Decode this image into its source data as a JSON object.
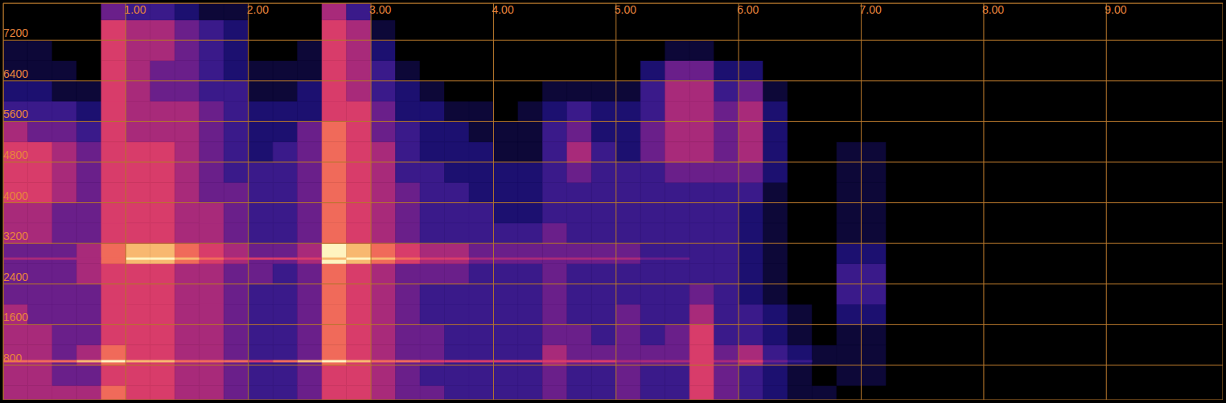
{
  "chart_data": {
    "type": "heatmap",
    "xlim": [
      0,
      9.95
    ],
    "xticks": [
      {
        "value": 1,
        "label": "1.00"
      },
      {
        "value": 2,
        "label": "2.00"
      },
      {
        "value": 3,
        "label": "3.00"
      },
      {
        "value": 4,
        "label": "4.00"
      },
      {
        "value": 5,
        "label": "5.00"
      },
      {
        "value": 6,
        "label": "6.00"
      },
      {
        "value": 7,
        "label": "7.00"
      },
      {
        "value": 8,
        "label": "8.00"
      },
      {
        "value": 9,
        "label": "9.00"
      }
    ],
    "ylim": [
      120,
      7930
    ],
    "yticks": [
      800,
      1600,
      2400,
      3200,
      4000,
      4800,
      5600,
      6400,
      7200
    ],
    "grid": true,
    "color_range": [
      0,
      9
    ],
    "x_bins": [
      0,
      0.2,
      0.4,
      0.6,
      0.8,
      1,
      1.2,
      1.4,
      1.6,
      1.8,
      2,
      2.2,
      2.4,
      2.6,
      2.8,
      3,
      3.2,
      3.4,
      3.6,
      3.8,
      4,
      4.2,
      4.4,
      4.6,
      4.8,
      5,
      5.2,
      5.4,
      5.6,
      5.8,
      6,
      6.2,
      6.4,
      6.6,
      6.8,
      7,
      7.2
    ],
    "y_bins": [
      0,
      400,
      800,
      1200,
      1600,
      2000,
      2400,
      2800,
      3200,
      3600,
      4000,
      4400,
      4800,
      5200,
      5600,
      6000,
      6400,
      6800,
      7200,
      7600,
      8000
    ],
    "cells": [
      [
        5,
        5,
        5,
        5,
        5,
        4,
        4,
        4,
        5,
        5,
        6,
        6,
        6,
        5,
        3,
        2,
        1,
        1,
        0,
        0
      ],
      [
        5,
        5,
        5,
        5,
        4,
        4,
        4,
        4,
        5,
        5,
        6,
        6,
        6,
        4,
        3,
        2,
        1,
        1,
        0,
        0
      ],
      [
        5,
        4,
        4,
        4,
        4,
        4,
        4,
        4,
        4,
        4,
        5,
        5,
        5,
        4,
        3,
        1,
        1,
        0,
        0,
        0
      ],
      [
        5,
        4,
        5,
        4,
        4,
        4,
        5,
        5,
        4,
        4,
        4,
        4,
        4,
        3,
        2,
        1,
        0,
        0,
        0,
        0
      ],
      [
        7,
        6,
        7,
        6,
        6,
        6,
        6,
        7,
        6,
        6,
        6,
        6,
        6,
        6,
        6,
        6,
        6,
        6,
        6,
        4
      ],
      [
        6,
        6,
        6,
        6,
        6,
        6,
        6,
        8,
        6,
        6,
        6,
        6,
        6,
        5,
        5,
        5,
        5,
        5,
        5,
        3
      ],
      [
        6,
        6,
        6,
        6,
        6,
        6,
        6,
        8,
        6,
        6,
        6,
        6,
        6,
        5,
        5,
        4,
        4,
        5,
        5,
        3
      ],
      [
        5,
        5,
        5,
        5,
        5,
        5,
        5,
        7,
        5,
        5,
        5,
        5,
        5,
        5,
        5,
        4,
        4,
        4,
        4,
        2
      ],
      [
        5,
        5,
        5,
        5,
        5,
        5,
        5,
        6,
        5,
        5,
        4,
        4,
        4,
        4,
        4,
        3,
        3,
        3,
        3,
        1
      ],
      [
        4,
        4,
        4,
        4,
        4,
        4,
        4,
        5,
        4,
        4,
        4,
        3,
        3,
        3,
        3,
        3,
        2,
        2,
        2,
        1
      ],
      [
        3,
        3,
        3,
        3,
        3,
        3,
        4,
        4,
        3,
        3,
        3,
        3,
        2,
        2,
        2,
        1,
        1,
        0,
        0,
        0
      ],
      [
        3,
        3,
        3,
        3,
        3,
        3,
        3,
        4,
        3,
        3,
        3,
        3,
        3,
        2,
        2,
        1,
        1,
        0,
        0,
        0
      ],
      [
        4,
        4,
        4,
        4,
        4,
        4,
        4,
        5,
        4,
        4,
        4,
        4,
        4,
        4,
        2,
        2,
        1,
        1,
        0,
        0
      ],
      [
        6,
        6,
        7,
        7,
        7,
        7,
        7,
        9,
        7,
        7,
        7,
        7,
        7,
        7,
        6,
        6,
        6,
        6,
        6,
        5
      ],
      [
        6,
        6,
        6,
        6,
        6,
        6,
        6,
        8,
        6,
        6,
        6,
        6,
        6,
        6,
        6,
        5,
        5,
        5,
        5,
        3
      ],
      [
        5,
        5,
        5,
        5,
        5,
        5,
        5,
        7,
        5,
        5,
        5,
        5,
        5,
        4,
        4,
        3,
        3,
        2,
        1,
        0
      ],
      [
        4,
        4,
        4,
        4,
        4,
        4,
        4,
        6,
        4,
        4,
        4,
        3,
        3,
        3,
        2,
        2,
        1,
        0,
        0,
        0
      ],
      [
        4,
        3,
        4,
        4,
        3,
        3,
        4,
        5,
        3,
        3,
        3,
        3,
        2,
        2,
        2,
        1,
        0,
        0,
        0,
        0
      ],
      [
        3,
        3,
        3,
        3,
        3,
        3,
        4,
        5,
        3,
        3,
        3,
        2,
        2,
        2,
        1,
        0,
        0,
        0,
        0,
        0
      ],
      [
        3,
        3,
        3,
        3,
        3,
        3,
        3,
        4,
        3,
        3,
        2,
        2,
        2,
        1,
        1,
        0,
        0,
        0,
        0,
        0
      ],
      [
        3,
        3,
        3,
        3,
        3,
        3,
        3,
        4,
        3,
        2,
        2,
        2,
        1,
        1,
        0,
        0,
        0,
        0,
        0,
        0
      ],
      [
        3,
        3,
        3,
        3,
        3,
        3,
        3,
        4,
        3,
        2,
        2,
        2,
        1,
        1,
        1,
        0,
        0,
        0,
        0,
        0
      ],
      [
        4,
        4,
        5,
        4,
        4,
        4,
        4,
        4,
        4,
        3,
        3,
        3,
        3,
        3,
        2,
        1,
        0,
        0,
        0,
        0
      ],
      [
        3,
        3,
        4,
        4,
        3,
        3,
        3,
        4,
        3,
        3,
        3,
        4,
        5,
        4,
        3,
        1,
        0,
        0,
        0,
        0
      ],
      [
        3,
        3,
        4,
        3,
        3,
        3,
        3,
        4,
        3,
        3,
        3,
        3,
        3,
        2,
        2,
        1,
        0,
        0,
        0,
        0
      ],
      [
        4,
        4,
        4,
        4,
        4,
        3,
        3,
        4,
        3,
        3,
        3,
        3,
        2,
        2,
        2,
        1,
        0,
        0,
        0,
        0
      ],
      [
        3,
        3,
        4,
        3,
        3,
        3,
        3,
        3,
        3,
        3,
        3,
        3,
        4,
        4,
        3,
        3,
        2,
        0,
        0,
        0
      ],
      [
        3,
        3,
        4,
        4,
        3,
        3,
        3,
        3,
        3,
        3,
        3,
        4,
        5,
        5,
        5,
        5,
        4,
        1,
        0,
        0
      ],
      [
        6,
        6,
        6,
        6,
        5,
        4,
        3,
        3,
        3,
        3,
        3,
        4,
        5,
        5,
        5,
        5,
        4,
        1,
        0,
        0
      ],
      [
        4,
        4,
        4,
        3,
        3,
        3,
        3,
        3,
        3,
        3,
        3,
        4,
        4,
        4,
        4,
        3,
        2,
        0,
        0,
        0
      ],
      [
        3,
        3,
        5,
        3,
        3,
        2,
        2,
        2,
        2,
        2,
        3,
        4,
        5,
        5,
        5,
        4,
        2,
        0,
        0,
        0
      ],
      [
        2,
        2,
        3,
        2,
        2,
        1,
        1,
        1,
        1,
        1,
        1,
        2,
        2,
        2,
        2,
        1,
        0,
        0,
        0,
        0
      ],
      [
        1,
        1,
        2,
        1,
        1,
        0,
        0,
        0,
        0,
        0,
        0,
        0,
        0,
        0,
        0,
        0,
        0,
        0,
        0,
        0
      ],
      [
        1,
        0,
        1,
        0,
        0,
        0,
        0,
        0,
        0,
        0,
        0,
        0,
        0,
        0,
        0,
        0,
        0,
        0,
        0,
        0
      ],
      [
        0,
        1,
        1,
        1,
        2,
        3,
        3,
        2,
        1,
        1,
        1,
        1,
        1,
        0,
        0,
        0,
        0,
        0,
        0,
        0
      ],
      [
        0,
        1,
        1,
        1,
        2,
        3,
        3,
        2,
        1,
        1,
        1,
        1,
        1,
        0,
        0,
        0,
        0,
        0,
        0,
        0
      ]
    ],
    "tones": [
      {
        "frequency": 880,
        "values": [
          7,
          7,
          7,
          8,
          9,
          8,
          8,
          7,
          7,
          7,
          6,
          7,
          8,
          9,
          8,
          7,
          7,
          6,
          6,
          6,
          6,
          6,
          6,
          6,
          6,
          5,
          5,
          5,
          6,
          5,
          6,
          4,
          3,
          0,
          0,
          0
        ]
      },
      {
        "frequency": 2900,
        "values": [
          5,
          5,
          5,
          5,
          7,
          9,
          9,
          8,
          7,
          6,
          6,
          6,
          6,
          8,
          9,
          8,
          7,
          6,
          6,
          5,
          5,
          5,
          5,
          5,
          5,
          5,
          4,
          4,
          0,
          0,
          0,
          0,
          0,
          0,
          0,
          0
        ]
      }
    ]
  }
}
